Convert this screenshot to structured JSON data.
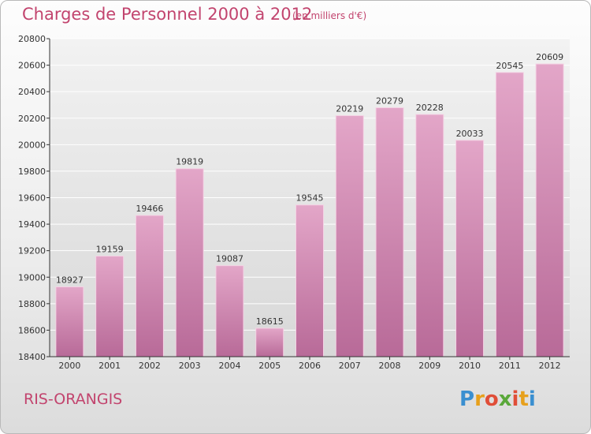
{
  "header": {
    "title": "Charges de Personnel 2000 à 2012",
    "subtitle": "(en milliers d'€)"
  },
  "footer": {
    "city": "RIS-ORANGIS",
    "logo_letters": [
      "P",
      "r",
      "o",
      "x",
      "i",
      "t",
      "i"
    ]
  },
  "colors": {
    "title": "#c2446e",
    "bar_top": "#e3a6c8",
    "bar_bottom": "#b86a98",
    "axis": "#333333",
    "grid": "#ffffff",
    "logo": [
      "#3a8fd0",
      "#e7a01c",
      "#e04e38",
      "#5aa83a",
      "#e04e38",
      "#e7a01c",
      "#3a8fd0"
    ]
  },
  "chart_data": {
    "type": "bar",
    "title": "Charges de Personnel 2000 à 2012",
    "subtitle": "(en milliers d'€)",
    "categories": [
      "2000",
      "2001",
      "2002",
      "2003",
      "2004",
      "2005",
      "2006",
      "2007",
      "2008",
      "2009",
      "2010",
      "2011",
      "2012"
    ],
    "values": [
      18927,
      19159,
      19466,
      19819,
      19087,
      18615,
      19545,
      20219,
      20279,
      20228,
      20033,
      20545,
      20609
    ],
    "ylim": [
      18400,
      20800
    ],
    "yticks": [
      18400,
      18600,
      18800,
      19000,
      19200,
      19400,
      19600,
      19800,
      20000,
      20200,
      20400,
      20600,
      20800
    ],
    "grid": true,
    "data_labels": true,
    "xlabel": "",
    "ylabel": ""
  }
}
